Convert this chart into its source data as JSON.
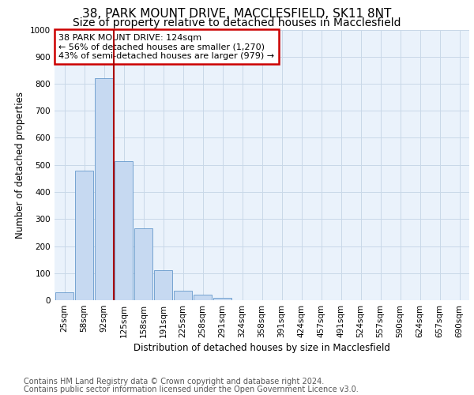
{
  "title1": "38, PARK MOUNT DRIVE, MACCLESFIELD, SK11 8NT",
  "title2": "Size of property relative to detached houses in Macclesfield",
  "xlabel": "Distribution of detached houses by size in Macclesfield",
  "ylabel": "Number of detached properties",
  "footnote1": "Contains HM Land Registry data © Crown copyright and database right 2024.",
  "footnote2": "Contains public sector information licensed under the Open Government Licence v3.0.",
  "bar_labels": [
    "25sqm",
    "58sqm",
    "92sqm",
    "125sqm",
    "158sqm",
    "191sqm",
    "225sqm",
    "258sqm",
    "291sqm",
    "324sqm",
    "358sqm",
    "391sqm",
    "424sqm",
    "457sqm",
    "491sqm",
    "524sqm",
    "557sqm",
    "590sqm",
    "624sqm",
    "657sqm",
    "690sqm"
  ],
  "bar_values": [
    30,
    478,
    820,
    515,
    265,
    110,
    35,
    20,
    10,
    0,
    0,
    0,
    0,
    0,
    0,
    0,
    0,
    0,
    0,
    0,
    0
  ],
  "bar_color": "#c6d9f1",
  "bar_edge_color": "#6699cc",
  "vline_color": "#aa0000",
  "vline_pos": 2.5,
  "ylim": [
    0,
    1000
  ],
  "yticks": [
    0,
    100,
    200,
    300,
    400,
    500,
    600,
    700,
    800,
    900,
    1000
  ],
  "grid_color": "#c8d8e8",
  "bg_color": "#eaf2fb",
  "annotation_line1": "38 PARK MOUNT DRIVE: 124sqm",
  "annotation_line2": "← 56% of detached houses are smaller (1,270)",
  "annotation_line3": "43% of semi-detached houses are larger (979) →",
  "annotation_box_color": "#ffffff",
  "annotation_border_color": "#cc0000",
  "title1_fontsize": 11,
  "title2_fontsize": 10,
  "axis_label_fontsize": 8.5,
  "tick_fontsize": 7.5,
  "footnote_fontsize": 7,
  "annotation_fontsize": 8
}
